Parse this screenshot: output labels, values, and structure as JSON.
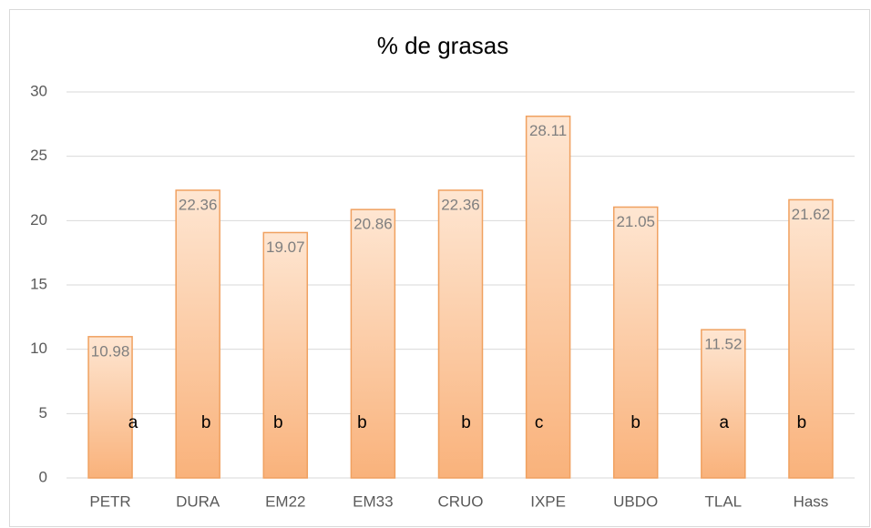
{
  "chart_data": {
    "type": "bar",
    "title": "% de grasas",
    "categories": [
      "PETR",
      "DURA",
      "EM22",
      "EM33",
      "CRUO",
      "IXPE",
      "UBDO",
      "TLAL",
      "Hass"
    ],
    "values": [
      10.98,
      22.36,
      19.07,
      20.86,
      22.36,
      28.11,
      21.05,
      11.52,
      21.62
    ],
    "annotations": [
      "a",
      "b",
      "b",
      "b",
      "b",
      "c",
      "b",
      "a",
      "b"
    ],
    "color": "#f9b27b",
    "ylim": [
      0,
      30
    ],
    "yticks": [
      0,
      5,
      10,
      15,
      20,
      25,
      30
    ],
    "grid": true
  }
}
